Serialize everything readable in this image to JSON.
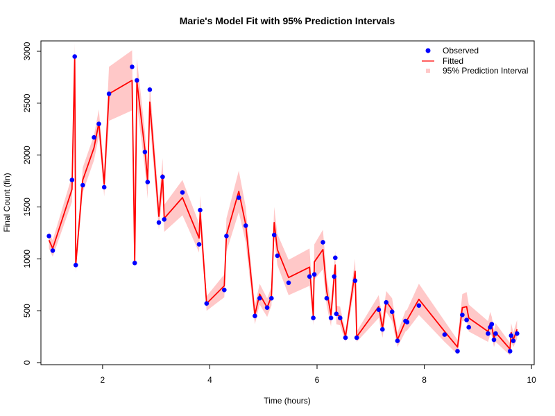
{
  "chart_data": {
    "type": "line",
    "title": "Marie's Model Fit with 95% Prediction Intervals",
    "xlabel": "Time (hours)",
    "ylabel": "Final Count (fin)",
    "xlim": [
      0.85,
      10.05
    ],
    "ylim": [
      -20,
      3100
    ],
    "xticks": [
      2,
      4,
      6,
      8,
      10
    ],
    "yticks": [
      0,
      500,
      1000,
      1500,
      2000,
      2500,
      3000
    ],
    "legend_position": "top-right",
    "colors": {
      "observed": "#0000FF",
      "fitted": "#FF0000",
      "interval": "#FFC8C8"
    },
    "series": [
      {
        "name": "Observed",
        "kind": "points",
        "x": [
          1.0,
          1.07,
          1.43,
          1.48,
          1.5,
          1.63,
          1.84,
          1.93,
          2.03,
          2.12,
          2.55,
          2.6,
          2.64,
          2.79,
          2.84,
          2.88,
          3.05,
          3.12,
          3.15,
          3.49,
          3.8,
          3.82,
          3.94,
          4.27,
          4.31,
          4.54,
          4.67,
          4.84,
          4.93,
          5.07,
          5.15,
          5.2,
          5.26,
          5.47,
          5.86,
          5.93,
          5.95,
          6.11,
          6.18,
          6.26,
          6.32,
          6.34,
          6.36,
          6.43,
          6.53,
          6.71,
          6.74,
          7.15,
          7.22,
          7.29,
          7.4,
          7.5,
          7.65,
          7.68,
          7.9,
          8.38,
          8.62,
          8.71,
          8.79,
          8.83,
          9.19,
          9.23,
          9.26,
          9.3,
          9.33,
          9.6,
          9.62,
          9.66,
          9.73
        ],
        "y": [
          1220,
          1080,
          1760,
          2950,
          940,
          1710,
          2170,
          2300,
          1690,
          2590,
          2850,
          960,
          2720,
          2030,
          1740,
          2630,
          1350,
          1790,
          1380,
          1640,
          1140,
          1470,
          570,
          700,
          1220,
          1590,
          1320,
          450,
          620,
          530,
          620,
          1230,
          1030,
          770,
          830,
          430,
          850,
          1160,
          620,
          430,
          830,
          1010,
          470,
          430,
          240,
          790,
          240,
          510,
          320,
          580,
          490,
          210,
          400,
          390,
          550,
          270,
          110,
          460,
          410,
          340,
          280,
          340,
          370,
          220,
          280,
          110,
          260,
          210,
          280
        ]
      },
      {
        "name": "Fitted",
        "kind": "line",
        "x": [
          1.0,
          1.07,
          1.43,
          1.48,
          1.5,
          1.63,
          1.84,
          1.93,
          2.03,
          2.12,
          2.55,
          2.6,
          2.64,
          2.79,
          2.84,
          2.88,
          3.05,
          3.12,
          3.15,
          3.49,
          3.8,
          3.82,
          3.94,
          4.27,
          4.31,
          4.54,
          4.67,
          4.84,
          4.93,
          5.07,
          5.15,
          5.2,
          5.26,
          5.47,
          5.86,
          5.93,
          5.95,
          6.11,
          6.18,
          6.26,
          6.32,
          6.34,
          6.36,
          6.43,
          6.53,
          6.71,
          6.74,
          7.15,
          7.22,
          7.29,
          7.4,
          7.5,
          7.65,
          7.68,
          7.9,
          8.38,
          8.62,
          8.71,
          8.79,
          8.83,
          9.19,
          9.23,
          9.26,
          9.3,
          9.33,
          9.6,
          9.62,
          9.66,
          9.73
        ],
        "y": [
          1180,
          1100,
          1670,
          2950,
          940,
          1760,
          2070,
          2310,
          1720,
          2590,
          2720,
          980,
          2710,
          2050,
          1750,
          2510,
          1410,
          1810,
          1390,
          1590,
          1200,
          1450,
          570,
          740,
          1230,
          1650,
          1330,
          460,
          660,
          530,
          640,
          1350,
          1090,
          820,
          920,
          450,
          970,
          1090,
          690,
          460,
          830,
          940,
          460,
          450,
          250,
          880,
          250,
          540,
          330,
          590,
          510,
          220,
          400,
          410,
          610,
          300,
          150,
          530,
          540,
          430,
          300,
          380,
          350,
          230,
          290,
          130,
          290,
          220,
          320
        ]
      },
      {
        "name": "95% Prediction Interval",
        "kind": "band",
        "x": [
          1.0,
          1.07,
          1.43,
          1.48,
          1.5,
          1.63,
          1.84,
          1.93,
          2.03,
          2.12,
          2.55,
          2.6,
          2.64,
          2.79,
          2.84,
          2.88,
          3.05,
          3.12,
          3.15,
          3.49,
          3.8,
          3.82,
          3.94,
          4.27,
          4.31,
          4.54,
          4.67,
          4.84,
          4.93,
          5.07,
          5.15,
          5.2,
          5.26,
          5.47,
          5.86,
          5.93,
          5.95,
          6.11,
          6.18,
          6.26,
          6.32,
          6.34,
          6.36,
          6.43,
          6.53,
          6.71,
          6.74,
          7.15,
          7.22,
          7.29,
          7.4,
          7.5,
          7.65,
          7.68,
          7.9,
          8.38,
          8.62,
          8.71,
          8.79,
          8.83,
          9.19,
          9.23,
          9.26,
          9.3,
          9.33,
          9.6,
          9.62,
          9.66,
          9.73
        ],
        "lower": [
          1100,
          1020,
          1550,
          2820,
          870,
          1640,
          1950,
          2180,
          1600,
          2330,
          2430,
          920,
          2490,
          1870,
          1580,
          2330,
          1280,
          1650,
          1260,
          1420,
          1060,
          1290,
          500,
          630,
          1070,
          1450,
          1160,
          370,
          560,
          440,
          550,
          1200,
          940,
          650,
          740,
          360,
          800,
          900,
          550,
          350,
          720,
          800,
          370,
          360,
          200,
          760,
          200,
          430,
          240,
          490,
          400,
          150,
          300,
          310,
          460,
          200,
          80,
          400,
          410,
          300,
          200,
          270,
          260,
          150,
          200,
          70,
          200,
          150,
          230
        ],
        "upper": [
          1260,
          1180,
          1800,
          3080,
          1010,
          1880,
          2190,
          2440,
          1840,
          2850,
          3010,
          1040,
          2930,
          2230,
          1920,
          2690,
          1540,
          1970,
          1520,
          1760,
          1340,
          1610,
          640,
          850,
          1390,
          1850,
          1500,
          550,
          760,
          620,
          730,
          1500,
          1240,
          990,
          1100,
          540,
          1140,
          1280,
          830,
          570,
          940,
          1080,
          550,
          540,
          300,
          1000,
          300,
          650,
          420,
          690,
          620,
          290,
          500,
          510,
          760,
          400,
          220,
          660,
          680,
          560,
          400,
          490,
          440,
          310,
          380,
          190,
          380,
          290,
          410
        ]
      }
    ]
  }
}
